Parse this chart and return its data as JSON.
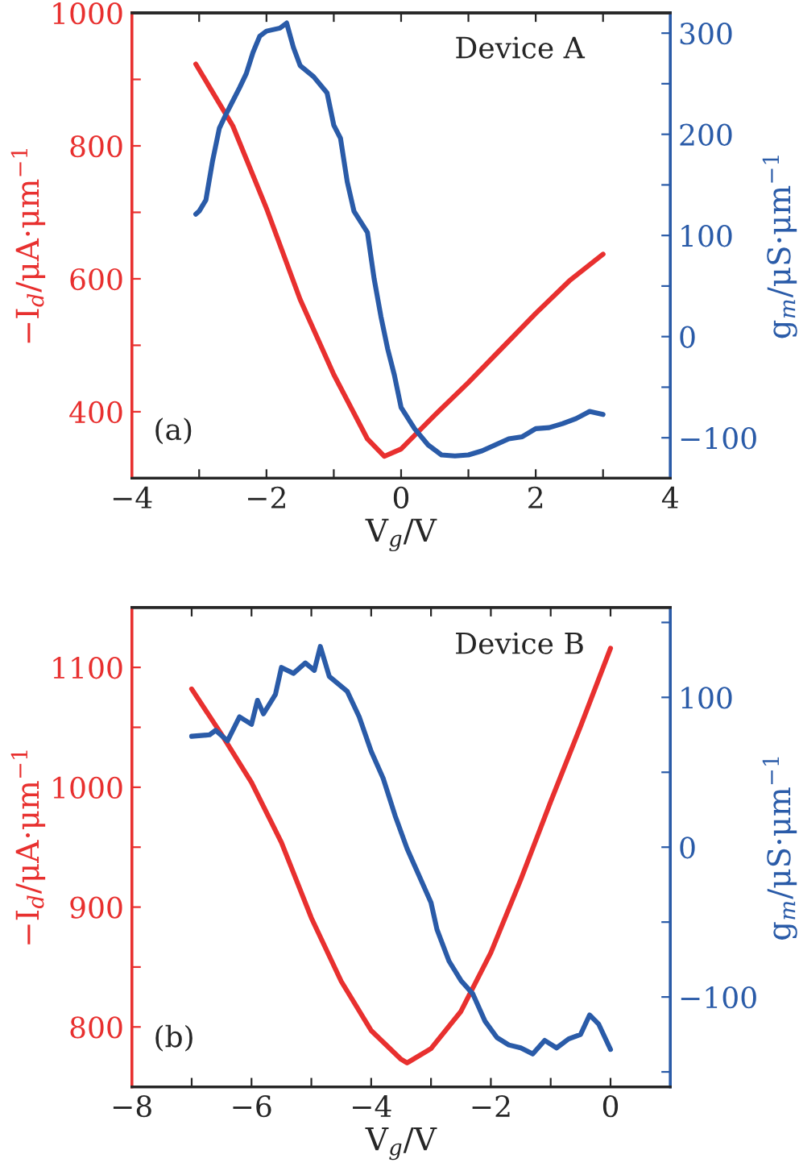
{
  "chart_data": [
    {
      "type": "line",
      "xlabel": "V$_{g}$/V",
      "ylabel": "−I$_{d}$/μA·μm$^{−1}$",
      "y2label": "g$_{m}$/μS·μm$^{−1}$",
      "annotations": [
        "Device A",
        "(a)"
      ],
      "xlim": [
        -4,
        4
      ],
      "xticks": [
        {
          "value": -4,
          "label": "−4"
        },
        {
          "value": -3,
          "label": null
        },
        {
          "value": -2,
          "label": "−2"
        },
        {
          "value": -1,
          "label": null
        },
        0,
        {
          "value": 1,
          "label": null
        },
        2,
        {
          "value": 3,
          "label": null
        },
        4
      ],
      "ylim": [
        300,
        1000
      ],
      "yticks": [
        400,
        {
          "value": 500,
          "label": null
        },
        600,
        {
          "value": 700,
          "label": null
        },
        800,
        {
          "value": 900,
          "label": null
        },
        1000
      ],
      "y2lim": [
        -140,
        320
      ],
      "y2ticks": [
        {
          "value": -100,
          "label": "−100"
        },
        {
          "value": -50,
          "label": null
        },
        0,
        {
          "value": 50,
          "label": null
        },
        100,
        {
          "value": 150,
          "label": null
        },
        200,
        {
          "value": 250,
          "label": null
        },
        300
      ],
      "grid": false,
      "legend": false,
      "series": [
        {
          "color": "#e8302f",
          "x": [
            -3.05,
            -2.5,
            -2.0,
            -1.5,
            -1.0,
            -0.5,
            -0.25,
            0,
            0.5,
            1.0,
            1.5,
            2.0,
            2.5,
            3.0
          ],
          "values": [
            923,
            830,
            706,
            569,
            456,
            359,
            333,
            344,
            395,
            444,
            496,
            548,
            597,
            637
          ]
        },
        {
          "color": "#2a5ba8",
          "axis": "y2",
          "x": [
            -3.05,
            -3.0,
            -2.9,
            -2.8,
            -2.7,
            -2.6,
            -2.5,
            -2.4,
            -2.3,
            -2.2,
            -2.1,
            -2.0,
            -1.8,
            -1.7,
            -1.6,
            -1.5,
            -1.3,
            -1.1,
            -1.0,
            -0.9,
            -0.8,
            -0.7,
            -0.5,
            -0.4,
            -0.3,
            -0.2,
            -0.1,
            0,
            0.2,
            0.4,
            0.6,
            0.8,
            1.0,
            1.2,
            1.4,
            1.6,
            1.8,
            2.0,
            2.2,
            2.4,
            2.6,
            2.8,
            3.0
          ],
          "values": [
            121,
            124,
            135,
            174,
            206,
            220,
            233,
            246,
            260,
            281,
            297,
            302,
            305,
            310,
            286,
            268,
            257,
            241,
            209,
            196,
            153,
            124,
            103,
            57,
            20,
            -12,
            -38,
            -70,
            -91,
            -107,
            -117,
            -118,
            -117,
            -113,
            -107,
            -101,
            -99,
            -91,
            -90,
            -86,
            -81,
            -74,
            -77
          ]
        }
      ]
    },
    {
      "type": "line",
      "xlabel": "V$_{g}$/V",
      "ylabel": "−I$_{d}$/μA·μm$^{−1}$",
      "y2label": "g$_{m}$/μS·μm$^{−1}$",
      "annotations": [
        "Device B",
        "(b)"
      ],
      "xlim": [
        -8,
        1
      ],
      "xticks": [
        {
          "value": -8,
          "label": "−8"
        },
        {
          "value": -7,
          "label": null
        },
        {
          "value": -6,
          "label": "−6"
        },
        {
          "value": -5,
          "label": null
        },
        {
          "value": -4,
          "label": "−4"
        },
        {
          "value": -3,
          "label": null
        },
        {
          "value": -2,
          "label": "−2"
        },
        {
          "value": -1,
          "label": null
        },
        0
      ],
      "ylim": [
        750,
        1150
      ],
      "yticks": [
        800,
        {
          "value": 850,
          "label": null
        },
        900,
        {
          "value": 950,
          "label": null
        },
        1000,
        {
          "value": 1050,
          "label": null
        },
        1100
      ],
      "y2lim": [
        -160,
        160
      ],
      "y2ticks": [
        {
          "value": -150,
          "label": null
        },
        {
          "value": -100,
          "label": "−100"
        },
        {
          "value": -50,
          "label": null
        },
        0,
        {
          "value": 50,
          "label": null
        },
        100,
        {
          "value": 150,
          "label": null
        }
      ],
      "grid": false,
      "legend": false,
      "series": [
        {
          "color": "#e8302f",
          "x": [
            -7,
            -6.5,
            -6,
            -5.5,
            -5,
            -4.5,
            -4,
            -3.5,
            -3.4,
            -3,
            -2.5,
            -2,
            -1.5,
            -1,
            -0.5,
            0
          ],
          "values": [
            1082,
            1044,
            1004,
            954,
            891,
            838,
            797,
            773,
            770,
            782,
            813,
            862,
            923,
            988,
            1051,
            1116
          ]
        },
        {
          "color": "#2a5ba8",
          "axis": "y2",
          "x": [
            -7,
            -6.7,
            -6.6,
            -6.4,
            -6.2,
            -6.0,
            -5.9,
            -5.8,
            -5.6,
            -5.5,
            -5.3,
            -5.1,
            -4.95,
            -4.85,
            -4.7,
            -4.4,
            -4.2,
            -4.0,
            -3.8,
            -3.6,
            -3.4,
            -3.2,
            -3.0,
            -2.9,
            -2.7,
            -2.5,
            -2.3,
            -2.1,
            -1.9,
            -1.7,
            -1.5,
            -1.3,
            -1.1,
            -0.9,
            -0.7,
            -0.5,
            -0.35,
            -0.2,
            0
          ],
          "values": [
            74,
            75,
            78,
            71,
            87,
            82,
            98,
            89,
            102,
            120,
            116,
            123,
            118,
            134,
            114,
            104,
            87,
            64,
            46,
            21,
            -1,
            -19,
            -37,
            -55,
            -76,
            -89,
            -98,
            -116,
            -127,
            -132,
            -134,
            -138,
            -129,
            -134,
            -128,
            -125,
            -112,
            -118,
            -135
          ]
        }
      ]
    }
  ]
}
